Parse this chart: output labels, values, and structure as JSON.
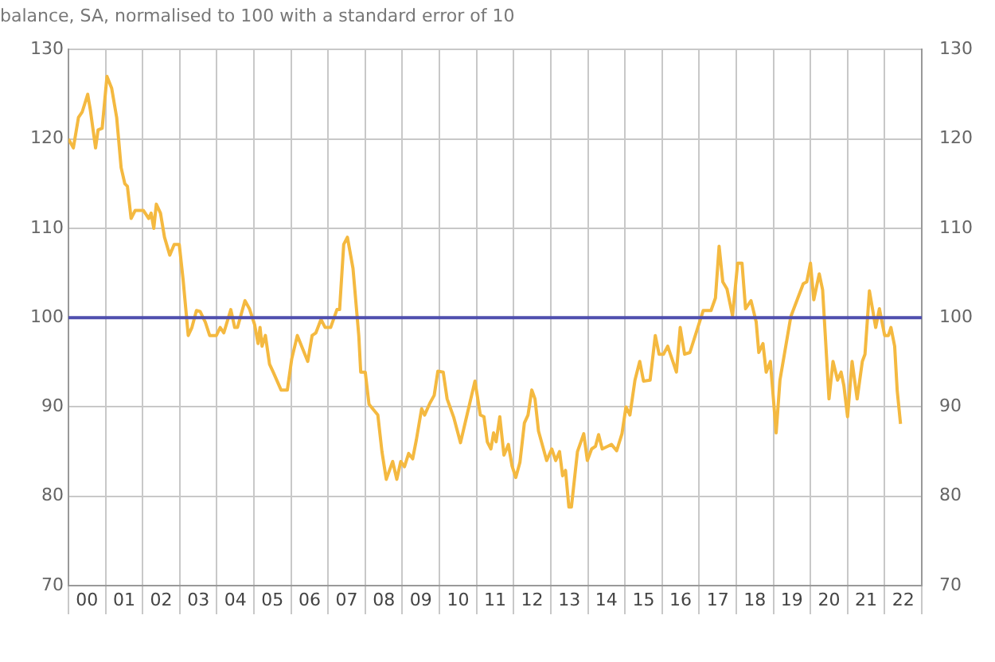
{
  "chart_data": {
    "type": "line",
    "title": "balance, SA, normalised to 100 with a standard error of 10",
    "x": [
      "2000-01-01",
      "2000-02-18",
      "2000-04-08",
      "2000-05-14",
      "2000-07-08",
      "2000-08-03",
      "2000-09-24",
      "2000-10-19",
      "2000-11-28",
      "2001-01-15",
      "2001-02-28",
      "2001-04-19",
      "2001-06-02",
      "2001-07-08",
      "2001-08-03",
      "2001-09-09",
      "2001-10-19",
      "2002-01-08",
      "2002-02-28",
      "2002-03-24",
      "2002-04-19",
      "2002-05-14",
      "2002-06-24",
      "2002-08-03",
      "2002-09-24",
      "2002-11-07",
      "2002-12-27",
      "2003-02-03",
      "2003-03-24",
      "2003-04-29",
      "2003-06-13",
      "2003-07-19",
      "2003-09-09",
      "2003-10-22",
      "2003-12-27",
      "2004-02-03",
      "2004-03-09",
      "2004-05-17",
      "2004-06-24",
      "2004-07-22",
      "2004-10-04",
      "2004-11-17",
      "2005-01-08",
      "2005-02-10",
      "2005-02-28",
      "2005-03-20",
      "2005-04-22",
      "2005-06-02",
      "2005-07-08",
      "2005-09-24",
      "2005-11-25",
      "2006-01-08",
      "2006-03-02",
      "2006-06-13",
      "2006-07-26",
      "2006-09-02",
      "2006-10-22",
      "2006-12-02",
      "2007-01-26",
      "2007-03-27",
      "2007-04-22",
      "2007-06-02",
      "2007-07-08",
      "2007-09-02",
      "2007-10-29",
      "2007-11-17",
      "2008-01-01",
      "2008-02-07",
      "2008-05-03",
      "2008-06-13",
      "2008-07-26",
      "2008-09-27",
      "2008-11-07",
      "2008-12-16",
      "2009-01-22",
      "2009-03-02",
      "2009-04-11",
      "2009-05-17",
      "2009-07-08",
      "2009-08-07",
      "2009-09-27",
      "2009-11-10",
      "2009-12-16",
      "2010-02-07",
      "2010-03-16",
      "2010-05-21",
      "2010-07-26",
      "2010-09-16",
      "2010-12-16",
      "2011-02-07",
      "2011-03-13",
      "2011-04-15",
      "2011-05-21",
      "2011-06-16",
      "2011-07-11",
      "2011-08-17",
      "2011-09-27",
      "2011-11-10",
      "2011-12-16",
      "2012-01-22",
      "2012-03-02",
      "2012-04-15",
      "2012-05-21",
      "2012-06-27",
      "2012-07-29",
      "2012-09-02",
      "2012-11-21",
      "2013-01-11",
      "2013-02-18",
      "2013-03-27",
      "2013-04-26",
      "2013-05-25",
      "2013-06-27",
      "2013-07-22",
      "2013-09-20",
      "2013-11-21",
      "2013-12-27",
      "2014-02-07",
      "2014-03-16",
      "2014-04-15",
      "2014-05-21",
      "2014-08-21",
      "2014-10-11",
      "2014-12-02",
      "2015-01-11",
      "2015-02-18",
      "2015-04-08",
      "2015-05-25",
      "2015-07-01",
      "2015-09-05",
      "2015-10-26",
      "2015-12-02",
      "2016-01-15",
      "2016-02-25",
      "2016-05-21",
      "2016-06-27",
      "2016-08-10",
      "2016-10-01",
      "2017-02-10",
      "2017-04-26",
      "2017-06-09",
      "2017-07-15",
      "2017-08-21",
      "2017-10-01",
      "2017-11-25",
      "2018-01-15",
      "2018-02-25",
      "2018-04-01",
      "2018-05-25",
      "2018-07-15",
      "2018-08-10",
      "2018-09-20",
      "2018-10-22",
      "2018-12-02",
      "2019-01-29",
      "2019-03-05",
      "2019-06-20",
      "2019-10-22",
      "2019-11-25",
      "2020-01-01",
      "2020-02-03",
      "2020-03-27",
      "2020-04-29",
      "2020-07-01",
      "2020-08-10",
      "2020-09-24",
      "2020-10-29",
      "2020-11-25",
      "2021-01-01",
      "2021-02-14",
      "2021-04-04",
      "2021-05-25",
      "2021-06-20",
      "2021-08-03",
      "2021-10-04",
      "2021-11-10",
      "2022-01-01",
      "2022-02-07",
      "2022-03-02",
      "2022-04-08",
      "2022-05-03",
      "2022-06-05"
    ],
    "series": [
      {
        "color": "#f4b940",
        "values": [
          120,
          119,
          122.4,
          123,
          125,
          123.3,
          119,
          121,
          121.2,
          127,
          125.7,
          122.4,
          116.8,
          115,
          114.7,
          111.1,
          112,
          112,
          111.1,
          111.7,
          110,
          112.7,
          111.7,
          109,
          107,
          108.2,
          108.2,
          104.3,
          98,
          98.9,
          100.8,
          100.7,
          99.5,
          98,
          98,
          98.9,
          98.3,
          100.9,
          98.9,
          98.9,
          101.9,
          101,
          99.2,
          97.1,
          98.9,
          96.8,
          98,
          94.8,
          93.9,
          91.9,
          91.9,
          95.4,
          98,
          95.1,
          98,
          98.3,
          99.8,
          98.9,
          98.9,
          100.9,
          100.9,
          108.2,
          109,
          105.5,
          98,
          93.9,
          93.9,
          90.3,
          89.1,
          85,
          81.9,
          83.9,
          81.9,
          83.9,
          83.3,
          84.8,
          84.2,
          86.3,
          89.8,
          89.1,
          90.4,
          91.3,
          94,
          93.9,
          90.9,
          88.8,
          86,
          88.5,
          92.9,
          89.1,
          88.9,
          86.1,
          85.3,
          87.1,
          86.1,
          88.9,
          84.6,
          85.8,
          83.4,
          82.1,
          83.8,
          88.2,
          89.1,
          91.9,
          90.9,
          87.3,
          84,
          85.3,
          84,
          85,
          82.3,
          82.9,
          78.8,
          78.8,
          85,
          87,
          84,
          85.3,
          85.6,
          86.9,
          85.3,
          85.8,
          85.1,
          87,
          90,
          89.1,
          93,
          95.1,
          92.9,
          93,
          98,
          95.9,
          95.9,
          96.8,
          93.9,
          98.9,
          95.9,
          96.1,
          100.8,
          100.8,
          102.2,
          108,
          104,
          103.2,
          100.2,
          106.1,
          106.1,
          101,
          101.9,
          99.5,
          96.1,
          97.1,
          93.9,
          95.1,
          87.1,
          93,
          100.1,
          103.8,
          104,
          106.1,
          102,
          104.9,
          103.1,
          90.9,
          95.1,
          93,
          93.9,
          92.4,
          88.9,
          95.1,
          90.9,
          95.1,
          95.9,
          103,
          98.9,
          101,
          98,
          98,
          98.9,
          96.8,
          91.8,
          88.1
        ]
      }
    ],
    "xlim": [
      "2000",
      "2023"
    ],
    "xticks": [
      {
        "value": "2000",
        "label": null
      },
      {
        "value": "2000-07",
        "label": "00"
      },
      {
        "value": "2001",
        "label": null
      },
      {
        "value": "2001-07",
        "label": "01"
      },
      {
        "value": "2002",
        "label": null
      },
      {
        "value": "2002-07",
        "label": "02"
      },
      {
        "value": "2003",
        "label": null
      },
      {
        "value": "2003-07",
        "label": "03"
      },
      {
        "value": "2004",
        "label": null
      },
      {
        "value": "2004-07",
        "label": "04"
      },
      {
        "value": "2005",
        "label": null
      },
      {
        "value": "2005-07",
        "label": "05"
      },
      {
        "value": "2006",
        "label": null
      },
      {
        "value": "2006-07",
        "label": "06"
      },
      {
        "value": "2007",
        "label": null
      },
      {
        "value": "2007-07",
        "label": "07"
      },
      {
        "value": "2008",
        "label": null
      },
      {
        "value": "2008-07",
        "label": "08"
      },
      {
        "value": "2009",
        "label": null
      },
      {
        "value": "2009-07",
        "label": "09"
      },
      {
        "value": "2010",
        "label": null
      },
      {
        "value": "2010-07",
        "label": "10"
      },
      {
        "value": "2011",
        "label": null
      },
      {
        "value": "2011-07",
        "label": "11"
      },
      {
        "value": "2012",
        "label": null
      },
      {
        "value": "2012-07",
        "label": "12"
      },
      {
        "value": "2013",
        "label": null
      },
      {
        "value": "2013-07",
        "label": "13"
      },
      {
        "value": "2014",
        "label": null
      },
      {
        "value": "2014-07",
        "label": "14"
      },
      {
        "value": "2015",
        "label": null
      },
      {
        "value": "2015-07",
        "label": "15"
      },
      {
        "value": "2016",
        "label": null
      },
      {
        "value": "2016-07",
        "label": "16"
      },
      {
        "value": "2017",
        "label": null
      },
      {
        "value": "2017-07",
        "label": "17"
      },
      {
        "value": "2018",
        "label": null
      },
      {
        "value": "2018-07",
        "label": "18"
      },
      {
        "value": "2019",
        "label": null
      },
      {
        "value": "2019-07",
        "label": "19"
      },
      {
        "value": "2020",
        "label": null
      },
      {
        "value": "2020-07",
        "label": "20"
      },
      {
        "value": "2021",
        "label": null
      },
      {
        "value": "2021-07",
        "label": "21"
      },
      {
        "value": "2022",
        "label": null
      },
      {
        "value": "2022-07",
        "label": "22"
      },
      {
        "value": "2023",
        "label": null
      }
    ],
    "ylim": [
      70,
      130
    ],
    "yticks": [
      70,
      80,
      90,
      100,
      110,
      120,
      130
    ],
    "y2lim": [
      70,
      130
    ],
    "y2ticks": [
      70,
      80,
      90,
      100,
      110,
      120,
      130
    ],
    "ref_lines": [
      {
        "axis": "y",
        "value": 100,
        "label": null,
        "color": "#4f4fae"
      }
    ],
    "grid": true,
    "legend": false,
    "marker": "none",
    "line_style": "solid"
  }
}
